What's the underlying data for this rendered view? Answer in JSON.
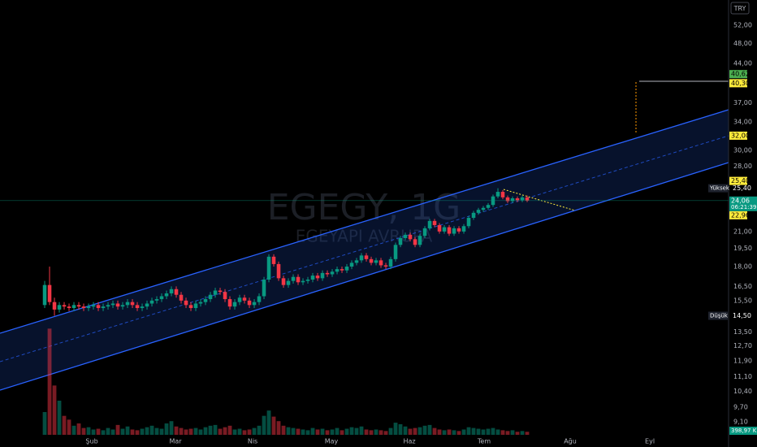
{
  "chart_data": {
    "type": "candlestick",
    "title": "EGEGY, 1G",
    "subtitle": "EGEYAPI AVRUPA",
    "currency": "TRY",
    "log_scale": true,
    "up_color": "#089981",
    "down_color": "#f23645",
    "ylim": [
      8.44,
      58.1
    ],
    "yticks": [
      {
        "value": 9.1,
        "label": "9,10"
      },
      {
        "value": 9.7,
        "label": "9,70"
      },
      {
        "value": 10.4,
        "label": "10,40"
      },
      {
        "value": 11.1,
        "label": "11,10"
      },
      {
        "value": 11.9,
        "label": "11,90"
      },
      {
        "value": 12.7,
        "label": "12,70"
      },
      {
        "value": 13.5,
        "label": "13,50"
      },
      {
        "value": 15.5,
        "label": "15,50"
      },
      {
        "value": 16.5,
        "label": "16,50"
      },
      {
        "value": 18,
        "label": "18,00"
      },
      {
        "value": 19.5,
        "label": "19,50"
      },
      {
        "value": 21,
        "label": "21,00"
      },
      {
        "value": 28,
        "label": "28,00"
      },
      {
        "value": 30,
        "label": "30,00"
      },
      {
        "value": 34,
        "label": "34,00"
      },
      {
        "value": 37,
        "label": "37,00"
      },
      {
        "value": 44,
        "label": "44,00"
      },
      {
        "value": 48,
        "label": "48,00"
      },
      {
        "value": 52,
        "label": "52,00"
      }
    ],
    "xlim": [
      -9.17,
      140.33
    ],
    "xticks": [
      {
        "value": 9.67,
        "label": "Şub"
      },
      {
        "value": 26.83,
        "label": "Mar"
      },
      {
        "value": 42.67,
        "label": "Nis"
      },
      {
        "value": 58.83,
        "label": "May"
      },
      {
        "value": 74.83,
        "label": "Haz"
      },
      {
        "value": 90.17,
        "label": "Tem"
      },
      {
        "value": 107.83,
        "label": "Ağu"
      },
      {
        "value": 124.17,
        "label": "Eyl"
      }
    ],
    "candles": [
      [
        15.2,
        16.9,
        15.0,
        16.6
      ],
      [
        16.6,
        18.0,
        15.2,
        15.4
      ],
      [
        15.4,
        15.7,
        14.5,
        14.9
      ],
      [
        14.9,
        15.4,
        14.7,
        15.2
      ],
      [
        15.2,
        15.4,
        14.9,
        15.1
      ],
      [
        15.1,
        15.3,
        14.8,
        15.0
      ],
      [
        15.0,
        15.4,
        14.8,
        15.2
      ],
      [
        15.2,
        15.4,
        14.9,
        15.1
      ],
      [
        15.1,
        15.3,
        14.8,
        15.0
      ],
      [
        15.0,
        15.3,
        14.8,
        15.1
      ],
      [
        15.1,
        15.4,
        14.9,
        15.2
      ],
      [
        15.2,
        15.4,
        14.8,
        15.0
      ],
      [
        15.0,
        15.3,
        14.8,
        15.1
      ],
      [
        15.1,
        15.4,
        14.9,
        15.2
      ],
      [
        15.2,
        15.5,
        15.0,
        15.3
      ],
      [
        15.3,
        15.5,
        14.9,
        15.1
      ],
      [
        15.1,
        15.4,
        14.9,
        15.2
      ],
      [
        15.2,
        15.6,
        15.0,
        15.4
      ],
      [
        15.4,
        15.6,
        15.0,
        15.2
      ],
      [
        15.2,
        15.4,
        14.8,
        15.0
      ],
      [
        15.0,
        15.3,
        14.8,
        15.1
      ],
      [
        15.1,
        15.5,
        14.9,
        15.3
      ],
      [
        15.3,
        15.7,
        15.1,
        15.5
      ],
      [
        15.5,
        15.8,
        15.3,
        15.6
      ],
      [
        15.6,
        16.0,
        15.4,
        15.8
      ],
      [
        15.8,
        16.2,
        15.6,
        16.0
      ],
      [
        16.0,
        16.5,
        15.8,
        16.3
      ],
      [
        16.3,
        16.5,
        15.7,
        15.9
      ],
      [
        15.9,
        16.1,
        15.3,
        15.5
      ],
      [
        15.5,
        15.7,
        15.0,
        15.2
      ],
      [
        15.2,
        15.4,
        14.8,
        15.0
      ],
      [
        15.0,
        15.5,
        14.8,
        15.3
      ],
      [
        15.3,
        15.6,
        15.1,
        15.4
      ],
      [
        15.4,
        15.8,
        15.2,
        15.6
      ],
      [
        15.6,
        16.1,
        15.4,
        15.9
      ],
      [
        15.9,
        16.4,
        15.7,
        16.2
      ],
      [
        16.2,
        16.4,
        15.9,
        16.1
      ],
      [
        16.1,
        16.3,
        15.4,
        15.6
      ],
      [
        15.6,
        15.8,
        14.9,
        15.1
      ],
      [
        15.1,
        15.6,
        14.9,
        15.4
      ],
      [
        15.4,
        15.9,
        15.2,
        15.7
      ],
      [
        15.7,
        15.9,
        15.3,
        15.5
      ],
      [
        15.5,
        15.7,
        15.0,
        15.2
      ],
      [
        15.2,
        15.6,
        15.0,
        15.4
      ],
      [
        15.4,
        16.0,
        15.2,
        15.8
      ],
      [
        15.8,
        17.2,
        15.6,
        17.0
      ],
      [
        17.0,
        19.0,
        16.8,
        18.8
      ],
      [
        18.8,
        19.0,
        18.0,
        18.2
      ],
      [
        18.2,
        18.4,
        16.9,
        17.1
      ],
      [
        17.1,
        17.3,
        16.4,
        16.6
      ],
      [
        16.6,
        17.1,
        16.4,
        16.9
      ],
      [
        16.9,
        17.4,
        16.7,
        17.2
      ],
      [
        17.2,
        17.4,
        16.6,
        16.8
      ],
      [
        16.8,
        17.1,
        16.6,
        16.9
      ],
      [
        16.9,
        17.2,
        16.7,
        17.0
      ],
      [
        17.0,
        17.5,
        16.8,
        17.3
      ],
      [
        17.3,
        17.5,
        16.9,
        17.1
      ],
      [
        17.1,
        17.7,
        16.9,
        17.5
      ],
      [
        17.5,
        17.7,
        17.2,
        17.4
      ],
      [
        17.4,
        17.8,
        17.2,
        17.6
      ],
      [
        17.6,
        18.0,
        17.4,
        17.8
      ],
      [
        17.8,
        18.0,
        17.5,
        17.7
      ],
      [
        17.7,
        18.2,
        17.5,
        18.0
      ],
      [
        18.0,
        18.5,
        17.8,
        18.3
      ],
      [
        18.3,
        18.7,
        18.1,
        18.5
      ],
      [
        18.5,
        19.1,
        18.3,
        18.9
      ],
      [
        18.9,
        19.1,
        18.4,
        18.6
      ],
      [
        18.6,
        18.8,
        18.1,
        18.3
      ],
      [
        18.3,
        18.7,
        18.1,
        18.5
      ],
      [
        18.5,
        18.7,
        17.9,
        18.1
      ],
      [
        18.1,
        18.3,
        17.8,
        18.0
      ],
      [
        18.0,
        18.8,
        17.8,
        18.6
      ],
      [
        18.6,
        20.0,
        18.4,
        19.8
      ],
      [
        19.8,
        20.6,
        19.6,
        20.4
      ],
      [
        20.4,
        20.9,
        20.2,
        20.7
      ],
      [
        20.7,
        20.9,
        20.1,
        20.3
      ],
      [
        20.3,
        20.5,
        19.6,
        19.8
      ],
      [
        19.8,
        20.8,
        19.6,
        20.6
      ],
      [
        20.6,
        21.5,
        20.4,
        21.3
      ],
      [
        21.3,
        22.2,
        21.1,
        22.0
      ],
      [
        22.0,
        22.2,
        21.4,
        21.6
      ],
      [
        21.6,
        21.8,
        20.8,
        21.0
      ],
      [
        21.0,
        21.6,
        20.8,
        21.4
      ],
      [
        21.4,
        21.6,
        20.6,
        20.8
      ],
      [
        20.8,
        21.5,
        20.6,
        21.3
      ],
      [
        21.3,
        21.5,
        20.8,
        21.0
      ],
      [
        21.0,
        21.7,
        20.8,
        21.5
      ],
      [
        21.5,
        22.5,
        21.3,
        22.3
      ],
      [
        22.3,
        23.0,
        22.1,
        22.8
      ],
      [
        22.8,
        23.3,
        22.6,
        23.1
      ],
      [
        23.1,
        23.5,
        22.9,
        23.3
      ],
      [
        23.3,
        23.8,
        23.1,
        23.6
      ],
      [
        23.6,
        24.7,
        23.4,
        24.5
      ],
      [
        24.5,
        25.4,
        24.3,
        25.0
      ],
      [
        25.0,
        25.2,
        24.2,
        24.4
      ],
      [
        24.4,
        24.6,
        23.8,
        24.0
      ],
      [
        24.0,
        24.5,
        23.8,
        24.3
      ],
      [
        24.3,
        24.5,
        23.9,
        24.1
      ],
      [
        24.1,
        24.6,
        23.9,
        24.4
      ],
      [
        24.4,
        24.6,
        23.9,
        24.06
      ]
    ],
    "volume_lim": [
      0,
      15000
    ],
    "volumes": [
      3000,
      14000,
      6500,
      4500,
      2500,
      2000,
      1200,
      1500,
      900,
      1000,
      700,
      800,
      600,
      900,
      700,
      1300,
      800,
      1100,
      700,
      600,
      800,
      1000,
      1200,
      900,
      800,
      1500,
      1800,
      1100,
      900,
      700,
      800,
      900,
      700,
      1000,
      1200,
      1300,
      800,
      1000,
      1200,
      700,
      800,
      600,
      700,
      900,
      1200,
      2500,
      3200,
      2400,
      1800,
      1200,
      1000,
      900,
      800,
      700,
      600,
      900,
      700,
      800,
      600,
      700,
      900,
      600,
      800,
      1000,
      900,
      1100,
      700,
      600,
      700,
      600,
      500,
      900,
      1600,
      1400,
      1100,
      800,
      900,
      1000,
      1200,
      1300,
      900,
      700,
      600,
      700,
      600,
      500,
      700,
      1000,
      900,
      800,
      700,
      800,
      900,
      700,
      600,
      500,
      600,
      400,
      500,
      398.97
    ],
    "volume_label": "398,97 K",
    "price_markers": [
      {
        "value": 40.62,
        "label": "40,62",
        "color": "#4caf50"
      },
      {
        "value": 40.3,
        "label": "40,30",
        "color": "#ffeb3b"
      },
      {
        "value": 32,
        "label": "32,00",
        "color": "#ffeb3b"
      },
      {
        "value": 25.4,
        "label": "25,40",
        "color": "#ffeb3b"
      },
      {
        "value": 22.96,
        "label": "22,96",
        "color": "#ffeb3b"
      }
    ],
    "high": {
      "text": "Yüksek",
      "value": 25.4,
      "label": "25,40"
    },
    "low": {
      "text": "Düşük",
      "value": 14.5,
      "label": "14,50"
    },
    "last": {
      "value": 24.06,
      "label": "24,06",
      "countdown": "06:21:39"
    }
  }
}
